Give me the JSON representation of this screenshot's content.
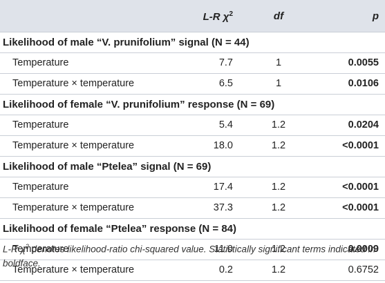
{
  "header": {
    "col1_prefix": "L-R χ",
    "col1_sup": "2",
    "col2": "df",
    "col3": "p"
  },
  "sections": [
    {
      "title": "Likelihood of male “V. prunifolium” signal (N = 44)",
      "rows": [
        {
          "label": "Temperature",
          "lr": "7.7",
          "df": "1",
          "p": "0.0055",
          "p_bold": true
        },
        {
          "label": "Temperature × temperature",
          "lr": "6.5",
          "df": "1",
          "p": "0.0106",
          "p_bold": true
        }
      ]
    },
    {
      "title": "Likelihood of female “V. prunifolium” response (N = 69)",
      "rows": [
        {
          "label": "Temperature",
          "lr": "5.4",
          "df": "1.2",
          "p": "0.0204",
          "p_bold": true
        },
        {
          "label": "Temperature × temperature",
          "lr": "18.0",
          "df": "1.2",
          "p": "<0.0001",
          "p_bold": true
        }
      ]
    },
    {
      "title": "Likelihood of male “Ptelea” signal (N = 69)",
      "rows": [
        {
          "label": "Temperature",
          "lr": "17.4",
          "df": "1.2",
          "p": "<0.0001",
          "p_bold": true
        },
        {
          "label": "Temperature × temperature",
          "lr": "37.3",
          "df": "1.2",
          "p": "<0.0001",
          "p_bold": true
        }
      ]
    },
    {
      "title": "Likelihood of female “Ptelea” response (N = 84)",
      "rows": [
        {
          "label": "Temperature",
          "lr": "11.0",
          "df": "1.2",
          "p": "0.0009",
          "p_bold": true
        },
        {
          "label": "Temperature × temperature",
          "lr": "0.2",
          "df": "1.2",
          "p": "0.6752",
          "p_bold": false
        }
      ]
    }
  ],
  "footnote": {
    "prefix": "L-R χ",
    "sup": "2",
    "text": " denotes likelihood-ratio chi-squared value. Statistically significant terms indicated in boldface."
  }
}
